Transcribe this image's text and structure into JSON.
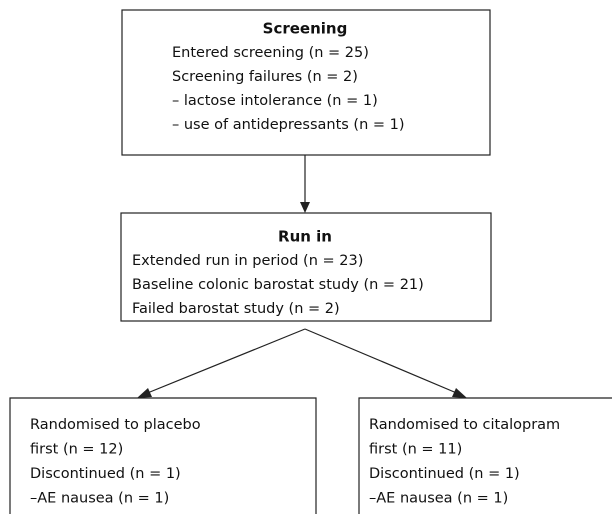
{
  "nodes": [
    {
      "title": "Screening",
      "lines": [
        "Entered screening (n = 25)",
        "Screening failures (n = 2)",
        "– lactose intolerance (n = 1)",
        "– use of antidepressants (n = 1)"
      ]
    },
    {
      "title": "Run in",
      "lines": [
        "Extended run in period (n = 23)",
        "Baseline colonic barostat study (n = 21)",
        "Failed barostat study (n = 2)"
      ]
    },
    {
      "lines": [
        "Randomised to placebo",
        "first (n = 12)",
        "Discontinued (n = 1)",
        "–AE nausea (n = 1)"
      ]
    },
    {
      "lines": [
        "Randomised to citalopram",
        "first (n = 11)",
        "Discontinued (n = 1)",
        "–AE nausea (n = 1)"
      ]
    }
  ]
}
